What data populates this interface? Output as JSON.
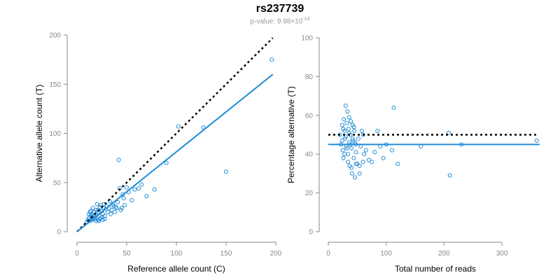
{
  "title": "rs237739",
  "subtitle": {
    "prefix": "p-value: 9.98×10",
    "exponent": "-14"
  },
  "colors": {
    "points": "#1f8ad6",
    "fit": "#1f8ad6",
    "reference": "#000000",
    "axes": "#888888"
  },
  "chart_data": [
    {
      "type": "scatter",
      "xlabel": "Reference allele count (C)",
      "ylabel": "Alternative allele count (T)",
      "xlim": [
        0,
        200
      ],
      "ylim": [
        0,
        200
      ],
      "xticks": [
        0,
        50,
        100,
        150,
        200
      ],
      "yticks": [
        0,
        50,
        100,
        150,
        200
      ],
      "grid": false,
      "lines": [
        {
          "role": "reference",
          "style": "dotted",
          "color": "#000000",
          "x": [
            0,
            197
          ],
          "y": [
            0,
            197
          ]
        },
        {
          "role": "fit",
          "style": "solid",
          "color": "#1f8ad6",
          "x": [
            0,
            197
          ],
          "y": [
            0,
            160
          ]
        }
      ],
      "points": [
        [
          10,
          10
        ],
        [
          11,
          12
        ],
        [
          12,
          14
        ],
        [
          13,
          11
        ],
        [
          14,
          16
        ],
        [
          15,
          18
        ],
        [
          16,
          13
        ],
        [
          17,
          20
        ],
        [
          18,
          15
        ],
        [
          19,
          22
        ],
        [
          20,
          17
        ],
        [
          21,
          12
        ],
        [
          22,
          19
        ],
        [
          23,
          25
        ],
        [
          24,
          14
        ],
        [
          25,
          21
        ],
        [
          26,
          18
        ],
        [
          27,
          28
        ],
        [
          28,
          16
        ],
        [
          29,
          23
        ],
        [
          30,
          26
        ],
        [
          31,
          20
        ],
        [
          32,
          24
        ],
        [
          33,
          31
        ],
        [
          34,
          18
        ],
        [
          35,
          22
        ],
        [
          36,
          28
        ],
        [
          37,
          26
        ],
        [
          38,
          20
        ],
        [
          39,
          25
        ],
        [
          40,
          24
        ],
        [
          41,
          30
        ],
        [
          42,
          73
        ],
        [
          43,
          44
        ],
        [
          44,
          22
        ],
        [
          45,
          24
        ],
        [
          46,
          38
        ],
        [
          47,
          34
        ],
        [
          48,
          27
        ],
        [
          50,
          45
        ],
        [
          52,
          40
        ],
        [
          55,
          32
        ],
        [
          58,
          43
        ],
        [
          62,
          44
        ],
        [
          65,
          48
        ],
        [
          70,
          36
        ],
        [
          78,
          43
        ],
        [
          90,
          70
        ],
        [
          102,
          107
        ],
        [
          127,
          106
        ],
        [
          150,
          61
        ],
        [
          196,
          175
        ],
        [
          12,
          18
        ],
        [
          14,
          21
        ],
        [
          15,
          12
        ],
        [
          16,
          24
        ],
        [
          17,
          17
        ],
        [
          18,
          13
        ],
        [
          19,
          11
        ],
        [
          20,
          28
        ],
        [
          21,
          22
        ],
        [
          22,
          11
        ],
        [
          23,
          13
        ],
        [
          24,
          27
        ],
        [
          25,
          15
        ],
        [
          26,
          12
        ],
        [
          27,
          24
        ],
        [
          28,
          13
        ],
        [
          13,
          20
        ],
        [
          15,
          15
        ]
      ]
    },
    {
      "type": "scatter",
      "xlabel": "Total number of reads",
      "ylabel": "Percentage alternative (T)",
      "xlim": [
        0,
        370
      ],
      "ylim": [
        0,
        100
      ],
      "xticks": [
        0,
        100,
        200,
        300
      ],
      "yticks": [
        0,
        20,
        40,
        60,
        80,
        100
      ],
      "grid": false,
      "lines": [
        {
          "role": "reference",
          "style": "dotted",
          "color": "#000000",
          "x": [
            0,
            360
          ],
          "y": [
            50,
            50
          ]
        },
        {
          "role": "fit",
          "style": "solid",
          "color": "#1f8ad6",
          "x": [
            0,
            365
          ],
          "y": [
            45,
            45
          ]
        }
      ],
      "points": [
        [
          20,
          50
        ],
        [
          22,
          45
        ],
        [
          24,
          55
        ],
        [
          25,
          42
        ],
        [
          26,
          38
        ],
        [
          27,
          58
        ],
        [
          28,
          52
        ],
        [
          29,
          48
        ],
        [
          30,
          65
        ],
        [
          31,
          44
        ],
        [
          32,
          56
        ],
        [
          33,
          62
        ],
        [
          34,
          40
        ],
        [
          35,
          53
        ],
        [
          36,
          46
        ],
        [
          37,
          34
        ],
        [
          38,
          50
        ],
        [
          39,
          57
        ],
        [
          40,
          43
        ],
        [
          41,
          30
        ],
        [
          42,
          55
        ],
        [
          43,
          47
        ],
        [
          44,
          38
        ],
        [
          45,
          52
        ],
        [
          46,
          28
        ],
        [
          47,
          45
        ],
        [
          48,
          41
        ],
        [
          50,
          35
        ],
        [
          52,
          48
        ],
        [
          54,
          30
        ],
        [
          56,
          44
        ],
        [
          58,
          52
        ],
        [
          60,
          50
        ],
        [
          62,
          40
        ],
        [
          65,
          42
        ],
        [
          70,
          37
        ],
        [
          75,
          36
        ],
        [
          80,
          41
        ],
        [
          85,
          52
        ],
        [
          90,
          44
        ],
        [
          95,
          38
        ],
        [
          100,
          45
        ],
        [
          110,
          42
        ],
        [
          113,
          64
        ],
        [
          120,
          35
        ],
        [
          160,
          44
        ],
        [
          208,
          51
        ],
        [
          210,
          29
        ],
        [
          230,
          45
        ],
        [
          360,
          47
        ],
        [
          24,
          47
        ],
        [
          26,
          53
        ],
        [
          28,
          40
        ],
        [
          30,
          49
        ],
        [
          32,
          43
        ],
        [
          34,
          36
        ],
        [
          36,
          59
        ],
        [
          38,
          45
        ],
        [
          44,
          54
        ],
        [
          48,
          35
        ],
        [
          36,
          51
        ],
        [
          40,
          33
        ],
        [
          42,
          48
        ],
        [
          46,
          46
        ],
        [
          54,
          34
        ],
        [
          60,
          36
        ]
      ]
    }
  ]
}
